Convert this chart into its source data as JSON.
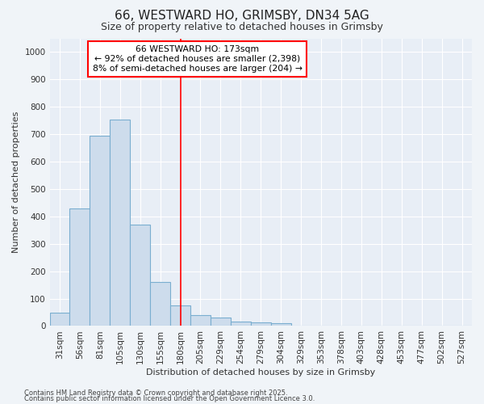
{
  "title1": "66, WESTWARD HO, GRIMSBY, DN34 5AG",
  "title2": "Size of property relative to detached houses in Grimsby",
  "xlabel": "Distribution of detached houses by size in Grimsby",
  "ylabel": "Number of detached properties",
  "categories": [
    "31sqm",
    "56sqm",
    "81sqm",
    "105sqm",
    "130sqm",
    "155sqm",
    "180sqm",
    "205sqm",
    "229sqm",
    "254sqm",
    "279sqm",
    "304sqm",
    "329sqm",
    "353sqm",
    "378sqm",
    "403sqm",
    "428sqm",
    "453sqm",
    "477sqm",
    "502sqm",
    "527sqm"
  ],
  "values": [
    50,
    430,
    695,
    755,
    370,
    160,
    75,
    40,
    30,
    17,
    13,
    10,
    0,
    0,
    0,
    0,
    0,
    0,
    0,
    0,
    0
  ],
  "bar_color": "#cddcec",
  "bar_edge_color": "#7aaed0",
  "bar_edge_width": 0.8,
  "ylim": [
    0,
    1050
  ],
  "yticks": [
    0,
    100,
    200,
    300,
    400,
    500,
    600,
    700,
    800,
    900,
    1000
  ],
  "red_line_x": 6.0,
  "annotation_box_text": "66 WESTWARD HO: 173sqm\n← 92% of detached houses are smaller (2,398)\n8% of semi-detached houses are larger (204) →",
  "bg_color": "#f0f4f8",
  "plot_bg_color": "#e8eef6",
  "grid_color": "#ffffff",
  "title1_fontsize": 11,
  "title2_fontsize": 9,
  "axis_label_fontsize": 8,
  "tick_fontsize": 7.5,
  "footer1": "Contains HM Land Registry data © Crown copyright and database right 2025.",
  "footer2": "Contains public sector information licensed under the Open Government Licence 3.0."
}
